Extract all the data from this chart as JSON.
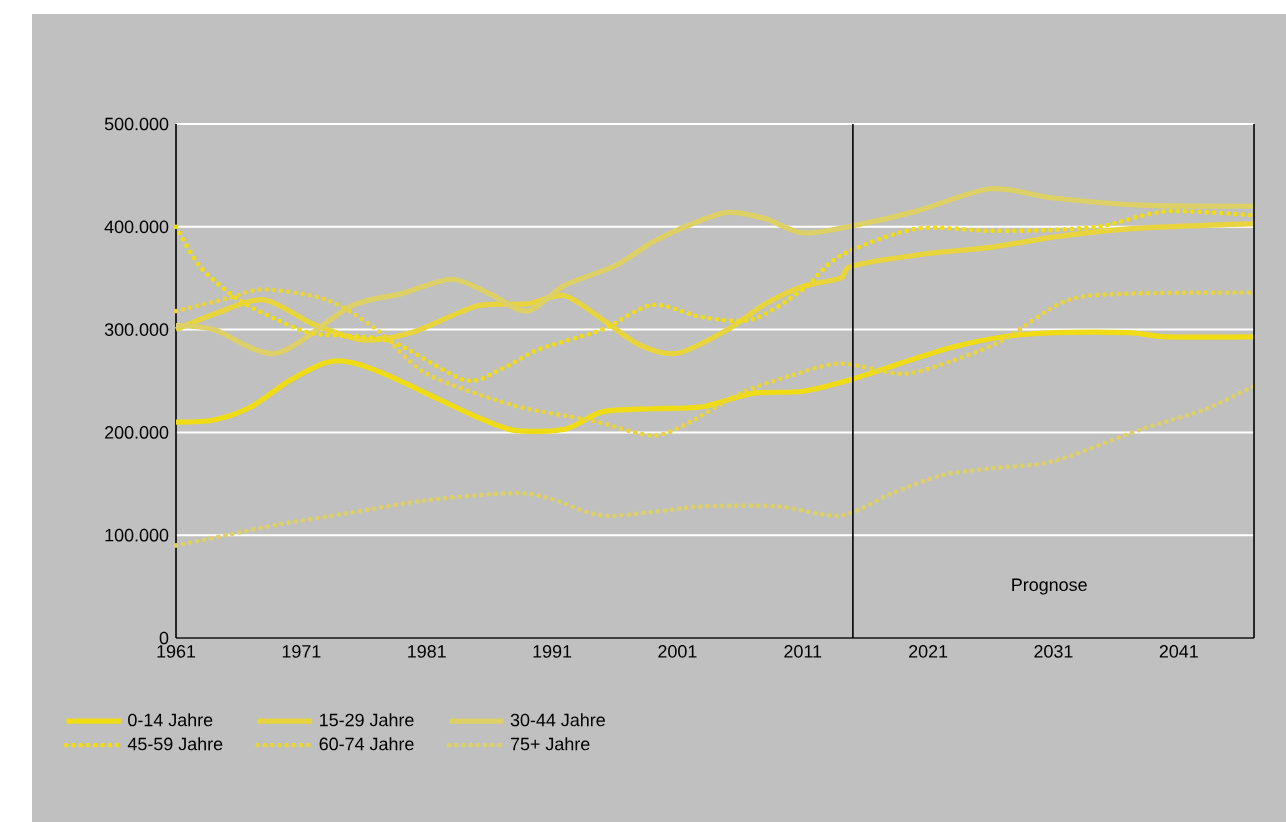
{
  "chart_data": {
    "type": "line",
    "x": [
      1961,
      1964,
      1967,
      1970,
      1973,
      1975,
      1978,
      1982,
      1985,
      1988,
      1992,
      1995,
      1999,
      2003,
      2007,
      2011,
      2015,
      2019,
      2023,
      2027,
      2031,
      2037,
      2040,
      2047
    ],
    "series": [
      {
        "name": "0-14 Jahre",
        "color": "#f0dc14",
        "line_style": "solid",
        "values": [
          210000,
          212000,
          225000,
          250000,
          268000,
          268000,
          255000,
          232000,
          215000,
          202000,
          203000,
          220000,
          223000,
          225000,
          238000,
          240000,
          252000,
          268000,
          283000,
          293000,
          297000,
          297000,
          293000,
          293000
        ]
      },
      {
        "name": "15-29 Jahre",
        "color": "#e8d43c",
        "line_style": "solid",
        "x": [
          1961,
          1964,
          1968,
          1972,
          1976,
          1980,
          1985,
          1989,
          1992,
          1995,
          1998,
          2001,
          2005,
          2008,
          2011,
          2014,
          2015,
          2021,
          2026,
          2031,
          2037,
          2047
        ],
        "values": [
          300000,
          315000,
          329000,
          305000,
          290000,
          298000,
          323000,
          325000,
          333000,
          310000,
          285000,
          277000,
          300000,
          325000,
          342000,
          350000,
          362000,
          374000,
          380000,
          390000,
          398000,
          403000
        ]
      },
      {
        "name": "30-44 Jahre",
        "color": "#dcd066",
        "line_style": "solid",
        "x": [
          1961,
          1964,
          1969,
          1975,
          1979,
          1983,
          1986,
          1989,
          1992,
          1996,
          1999,
          2002,
          2005,
          2008,
          2011,
          2015,
          2020,
          2026,
          2031,
          2038,
          2047
        ],
        "values": [
          304000,
          300000,
          277000,
          323000,
          335000,
          349000,
          335000,
          318000,
          343000,
          362000,
          385000,
          402000,
          414000,
          408000,
          394000,
          401000,
          415000,
          437000,
          428000,
          421000,
          420000
        ]
      },
      {
        "name": "45-59 Jahre",
        "color": "#f0dc14",
        "line_style": "dotted",
        "x": [
          1961,
          1963,
          1966,
          1969,
          1972,
          1978,
          1984,
          1987,
          1990,
          1995,
          1999,
          2003,
          2007,
          2011,
          2014,
          2020,
          2026,
          2031,
          2035,
          2040,
          2047
        ],
        "values": [
          400000,
          360000,
          329000,
          310000,
          296000,
          289000,
          251000,
          262000,
          281000,
          300000,
          324000,
          312000,
          310000,
          339000,
          372000,
          398000,
          396000,
          397000,
          401000,
          415000,
          411000
        ]
      },
      {
        "name": "60-74 Jahre",
        "color": "#e8d43c",
        "line_style": "dotted",
        "x": [
          1961,
          1965,
          1968,
          1973,
          1977,
          1981,
          1988,
          1994,
          1999,
          2002,
          2006,
          2010,
          2014,
          2019,
          2023,
          2027,
          2032,
          2037,
          2047
        ],
        "values": [
          318000,
          330000,
          339000,
          329000,
          300000,
          257000,
          226000,
          212000,
          197000,
          210000,
          238000,
          255000,
          267000,
          257000,
          270000,
          290000,
          328000,
          335000,
          336000
        ]
      },
      {
        "name": "75+ Jahre",
        "color": "#dcd066",
        "line_style": "dotted",
        "x": [
          1961,
          1965,
          1969,
          1975,
          1981,
          1988,
          1991,
          1995,
          2000,
          2003,
          2009,
          2014,
          2018,
          2022,
          2026,
          2031,
          2038,
          2043,
          2047
        ],
        "values": [
          90000,
          100000,
          110000,
          122000,
          134000,
          141000,
          135000,
          119000,
          124000,
          128000,
          128000,
          119000,
          140000,
          158000,
          165000,
          172000,
          203000,
          222000,
          245000
        ]
      }
    ],
    "xlim": [
      1961,
      2047
    ],
    "ylim": [
      0,
      500000
    ],
    "xticks": [
      1961,
      1971,
      1981,
      1991,
      2001,
      2011,
      2021,
      2031,
      2041
    ],
    "yticks": [
      0,
      {
        "value": 100000,
        "label": "100.000"
      },
      {
        "value": 200000,
        "label": "200.000"
      },
      {
        "value": 300000,
        "label": "300.000"
      },
      {
        "value": 400000,
        "label": "400.000"
      },
      {
        "value": 500000,
        "label": "500.000"
      }
    ],
    "grid": "y",
    "legend": "bottom",
    "ref_lines": [
      {
        "axis": "x",
        "value": 2015,
        "color": "#000000"
      }
    ],
    "annotations": [
      "Prognose"
    ]
  }
}
